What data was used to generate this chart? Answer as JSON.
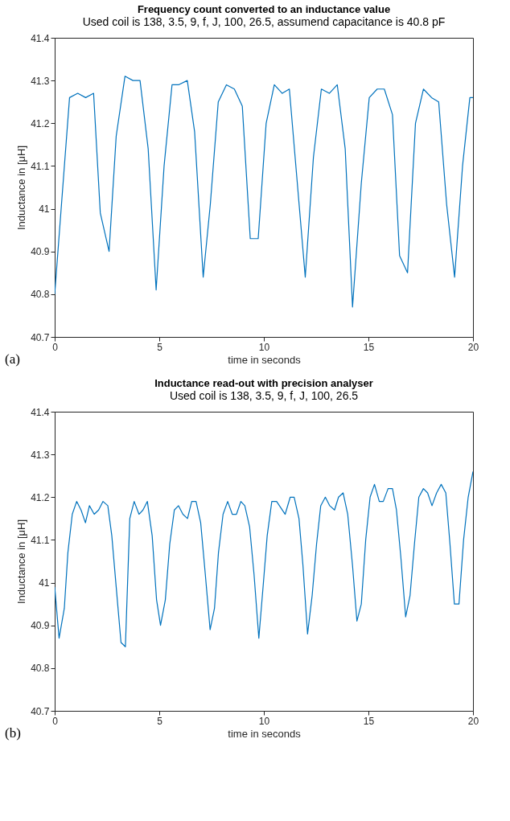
{
  "chart_data": [
    {
      "type": "line",
      "title": "Frequency count converted to an inductance value",
      "subtitle": "Used coil is 138, 3.5, 9, f, J, 100, 26.5, assumend capacitance is 40.8 pF",
      "xlabel": "time in seconds",
      "ylabel": "Inductance in [μH]",
      "annotations": [
        "(a)"
      ],
      "xlim": [
        0,
        20
      ],
      "ylim": [
        40.7,
        41.4
      ],
      "xticks": [
        0,
        5,
        10,
        15,
        20
      ],
      "yticks": [
        40.7,
        40.8,
        40.9,
        41,
        41.1,
        41.2,
        41.3,
        41.4
      ],
      "grid": false,
      "series": [
        {
          "color": "#0072bd",
          "x": [
            0,
            0.71,
            1.1,
            1.48,
            1.86,
            2.18,
            2.6,
            2.94,
            3.36,
            3.74,
            4.08,
            4.47,
            4.85,
            5.23,
            5.61,
            5.92,
            6.34,
            6.69,
            7.1,
            7.44,
            7.82,
            8.21,
            8.59,
            8.97,
            9.35,
            9.73,
            10.11,
            10.5,
            10.88,
            11.22,
            11.6,
            11.98,
            12.37,
            12.75,
            13.13,
            13.51,
            13.89,
            14.24,
            14.66,
            15.04,
            15.42,
            15.76,
            16.15,
            16.49,
            16.87,
            17.25,
            17.63,
            18.02,
            18.36,
            18.74,
            19.12,
            19.5,
            19.85,
            20
          ],
          "values": [
            40.8,
            41.26,
            41.27,
            41.26,
            41.27,
            40.99,
            40.9,
            41.17,
            41.31,
            41.3,
            41.3,
            41.14,
            40.81,
            41.1,
            41.29,
            41.29,
            41.3,
            41.18,
            40.84,
            41.01,
            41.25,
            41.29,
            41.28,
            41.24,
            40.93,
            40.93,
            41.2,
            41.29,
            41.27,
            41.28,
            41.06,
            40.84,
            41.12,
            41.28,
            41.27,
            41.29,
            41.14,
            40.77,
            41.06,
            41.26,
            41.28,
            41.28,
            41.22,
            40.89,
            40.85,
            41.2,
            41.28,
            41.26,
            41.25,
            41.01,
            40.84,
            41.1,
            41.26,
            41.26
          ]
        }
      ]
    },
    {
      "type": "line",
      "title": "Inductance read-out with precision analyser",
      "subtitle": "Used coil is 138, 3.5, 9, f, J, 100, 26.5",
      "xlabel": "time in seconds",
      "ylabel": "Inductance in [μH]",
      "annotations": [
        "(b)"
      ],
      "xlim": [
        0,
        20
      ],
      "ylim": [
        40.7,
        41.4
      ],
      "xticks": [
        0,
        5,
        10,
        15,
        20
      ],
      "yticks": [
        40.7,
        40.8,
        40.9,
        41,
        41.1,
        41.2,
        41.3,
        41.4
      ],
      "grid": false,
      "series": [
        {
          "color": "#0072bd",
          "x": [
            0,
            0.21,
            0.46,
            0.63,
            0.84,
            1.05,
            1.26,
            1.47,
            1.66,
            1.89,
            2.1,
            2.31,
            2.54,
            2.73,
            2.94,
            3.17,
            3.38,
            3.59,
            3.8,
            4.03,
            4.22,
            4.43,
            4.66,
            4.87,
            5.06,
            5.29,
            5.5,
            5.72,
            5.92,
            6.13,
            6.35,
            6.55,
            6.76,
            6.98,
            7.2,
            7.43,
            7.64,
            7.83,
            8.05,
            8.27,
            8.49,
            8.69,
            8.9,
            9.09,
            9.32,
            9.53,
            9.76,
            9.98,
            10.16,
            10.38,
            10.61,
            11.02,
            11.26,
            11.45,
            11.68,
            11.87,
            12.09,
            12.31,
            12.52,
            12.72,
            12.94,
            13.15,
            13.38,
            13.57,
            13.79,
            14.01,
            14.24,
            14.45,
            14.66,
            14.87,
            15.08,
            15.29,
            15.52,
            15.71,
            15.94,
            16.15,
            16.34,
            16.55,
            16.78,
            16.99,
            17.2,
            17.41,
            17.63,
            17.83,
            18.04,
            18.26,
            18.48,
            18.7,
            18.9,
            19.11,
            19.33,
            19.55,
            19.77,
            20
          ],
          "values": [
            40.99,
            40.87,
            40.94,
            41.07,
            41.16,
            41.19,
            41.17,
            41.14,
            41.18,
            41.16,
            41.17,
            41.19,
            41.18,
            41.11,
            40.99,
            40.86,
            40.85,
            41.15,
            41.19,
            41.16,
            41.17,
            41.19,
            41.11,
            40.96,
            40.9,
            40.96,
            41.09,
            41.17,
            41.18,
            41.16,
            41.15,
            41.19,
            41.19,
            41.14,
            41.02,
            40.89,
            40.94,
            41.07,
            41.16,
            41.19,
            41.16,
            41.16,
            41.19,
            41.18,
            41.13,
            41.02,
            40.87,
            41.0,
            41.11,
            41.19,
            41.19,
            41.16,
            41.2,
            41.2,
            41.15,
            41.04,
            40.88,
            40.97,
            41.09,
            41.18,
            41.2,
            41.18,
            41.17,
            41.2,
            41.21,
            41.16,
            41.04,
            40.91,
            40.95,
            41.1,
            41.2,
            41.23,
            41.19,
            41.19,
            41.22,
            41.22,
            41.17,
            41.06,
            40.92,
            40.97,
            41.09,
            41.2,
            41.22,
            41.21,
            41.18,
            41.21,
            41.23,
            41.21,
            41.09,
            40.95,
            40.95,
            41.1,
            41.2,
            41.26
          ]
        }
      ]
    }
  ]
}
